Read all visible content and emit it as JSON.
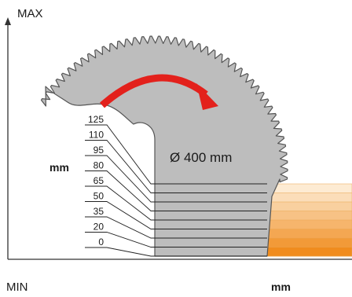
{
  "labels": {
    "max": "MAX",
    "min": "MIN",
    "unit_vertical": "mm",
    "unit_horizontal": "mm",
    "diameter": "Ø 400 mm"
  },
  "ticks": [
    "125",
    "110",
    "95",
    "80",
    "65",
    "50",
    "35",
    "20",
    "0"
  ],
  "colors": {
    "blade": "#bdbdbd",
    "blade_edge": "#555555",
    "arrow": "#e3211c",
    "band_light": "#fdebd3",
    "band_dark": "#f08c1e"
  }
}
